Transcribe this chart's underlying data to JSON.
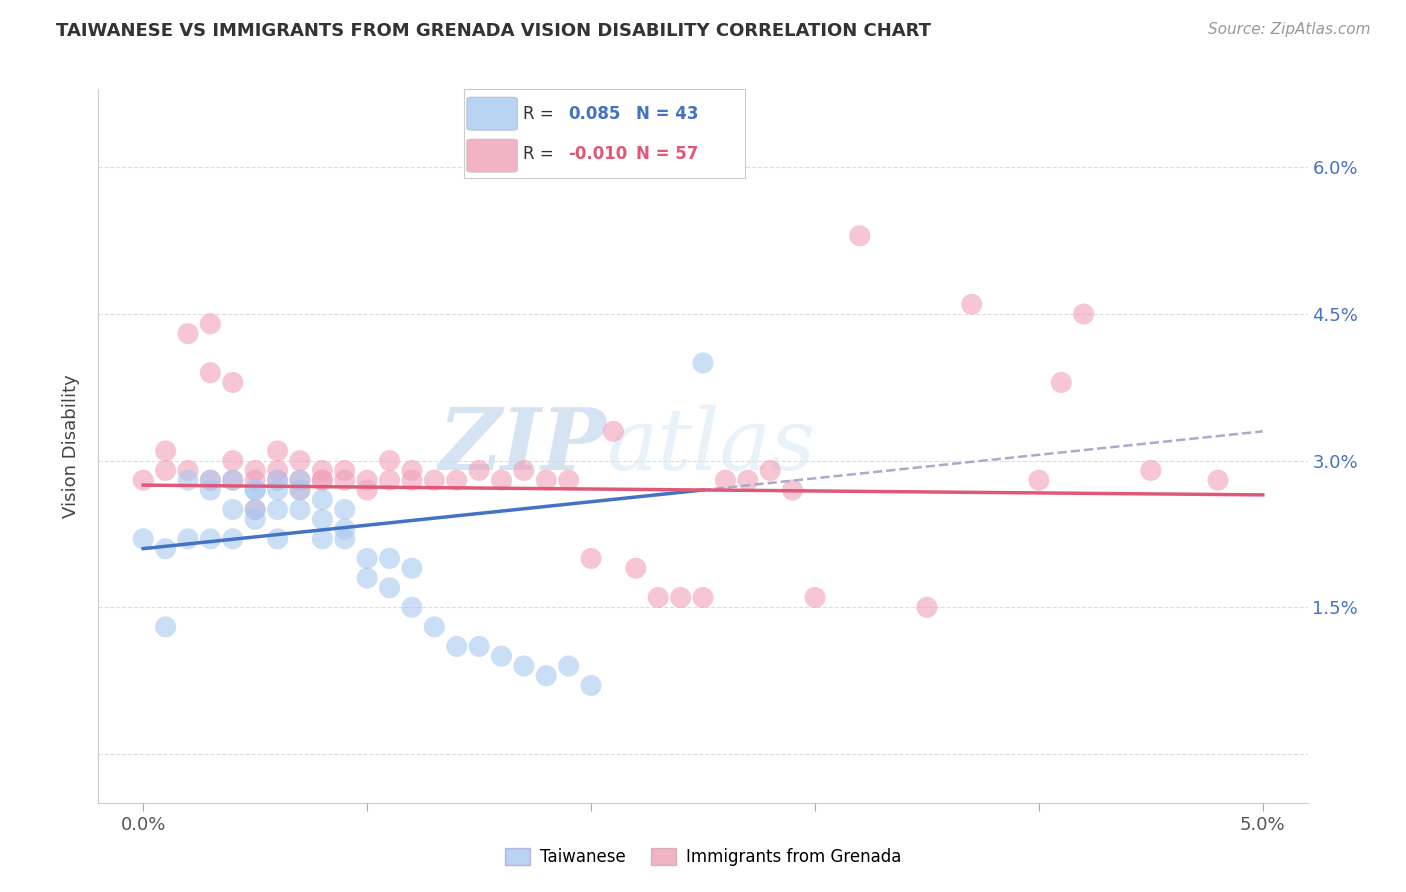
{
  "title": "TAIWANESE VS IMMIGRANTS FROM GRENADA VISION DISABILITY CORRELATION CHART",
  "source": "Source: ZipAtlas.com",
  "ylabel": "Vision Disability",
  "blue_color": "#a8c8f0",
  "pink_color": "#f0a0b8",
  "blue_line_color": "#4472c4",
  "pink_line_color": "#e05878",
  "dashed_line_color": "#aaaacc",
  "background_color": "#ffffff",
  "grid_color": "#dddddd",
  "watermark_zip": "ZIP",
  "watermark_atlas": "atlas",
  "blue_scatter_x": [
    0.0,
    0.001,
    0.001,
    0.002,
    0.002,
    0.003,
    0.003,
    0.003,
    0.004,
    0.004,
    0.004,
    0.005,
    0.005,
    0.005,
    0.005,
    0.006,
    0.006,
    0.006,
    0.006,
    0.007,
    0.007,
    0.007,
    0.008,
    0.008,
    0.008,
    0.009,
    0.009,
    0.009,
    0.01,
    0.01,
    0.011,
    0.011,
    0.012,
    0.012,
    0.013,
    0.014,
    0.015,
    0.016,
    0.017,
    0.018,
    0.019,
    0.02,
    0.025
  ],
  "blue_scatter_y": [
    0.022,
    0.021,
    0.013,
    0.028,
    0.022,
    0.028,
    0.027,
    0.022,
    0.028,
    0.025,
    0.022,
    0.027,
    0.027,
    0.025,
    0.024,
    0.028,
    0.027,
    0.025,
    0.022,
    0.028,
    0.027,
    0.025,
    0.026,
    0.024,
    0.022,
    0.025,
    0.023,
    0.022,
    0.02,
    0.018,
    0.02,
    0.017,
    0.019,
    0.015,
    0.013,
    0.011,
    0.011,
    0.01,
    0.009,
    0.008,
    0.009,
    0.007,
    0.04
  ],
  "pink_scatter_x": [
    0.0,
    0.001,
    0.001,
    0.002,
    0.002,
    0.003,
    0.003,
    0.003,
    0.004,
    0.004,
    0.004,
    0.005,
    0.005,
    0.005,
    0.006,
    0.006,
    0.006,
    0.007,
    0.007,
    0.007,
    0.008,
    0.008,
    0.008,
    0.009,
    0.009,
    0.01,
    0.01,
    0.011,
    0.011,
    0.012,
    0.012,
    0.013,
    0.014,
    0.015,
    0.016,
    0.017,
    0.018,
    0.019,
    0.02,
    0.021,
    0.022,
    0.023,
    0.024,
    0.025,
    0.026,
    0.027,
    0.028,
    0.029,
    0.03,
    0.032,
    0.035,
    0.037,
    0.04,
    0.041,
    0.042,
    0.045,
    0.048
  ],
  "pink_scatter_y": [
    0.028,
    0.031,
    0.029,
    0.043,
    0.029,
    0.044,
    0.039,
    0.028,
    0.038,
    0.03,
    0.028,
    0.028,
    0.025,
    0.029,
    0.031,
    0.029,
    0.028,
    0.03,
    0.028,
    0.027,
    0.028,
    0.029,
    0.028,
    0.029,
    0.028,
    0.028,
    0.027,
    0.028,
    0.03,
    0.028,
    0.029,
    0.028,
    0.028,
    0.029,
    0.028,
    0.029,
    0.028,
    0.028,
    0.02,
    0.033,
    0.019,
    0.016,
    0.016,
    0.016,
    0.028,
    0.028,
    0.029,
    0.027,
    0.016,
    0.053,
    0.015,
    0.046,
    0.028,
    0.038,
    0.045,
    0.029,
    0.028
  ],
  "xlim": [
    -0.002,
    0.052
  ],
  "ylim": [
    -0.005,
    0.068
  ],
  "yticks": [
    0.0,
    0.015,
    0.03,
    0.045,
    0.06
  ],
  "ytick_labels": [
    "",
    "1.5%",
    "3.0%",
    "4.5%",
    "6.0%"
  ],
  "xticks": [
    0.0,
    0.01,
    0.02,
    0.03,
    0.04,
    0.05
  ],
  "xtick_labels": [
    "0.0%",
    "",
    "",
    "",
    "",
    "5.0%"
  ],
  "blue_line_x": [
    0.0,
    0.025
  ],
  "pink_line_x": [
    0.0,
    0.05
  ],
  "dashed_line_x": [
    0.022,
    0.05
  ]
}
